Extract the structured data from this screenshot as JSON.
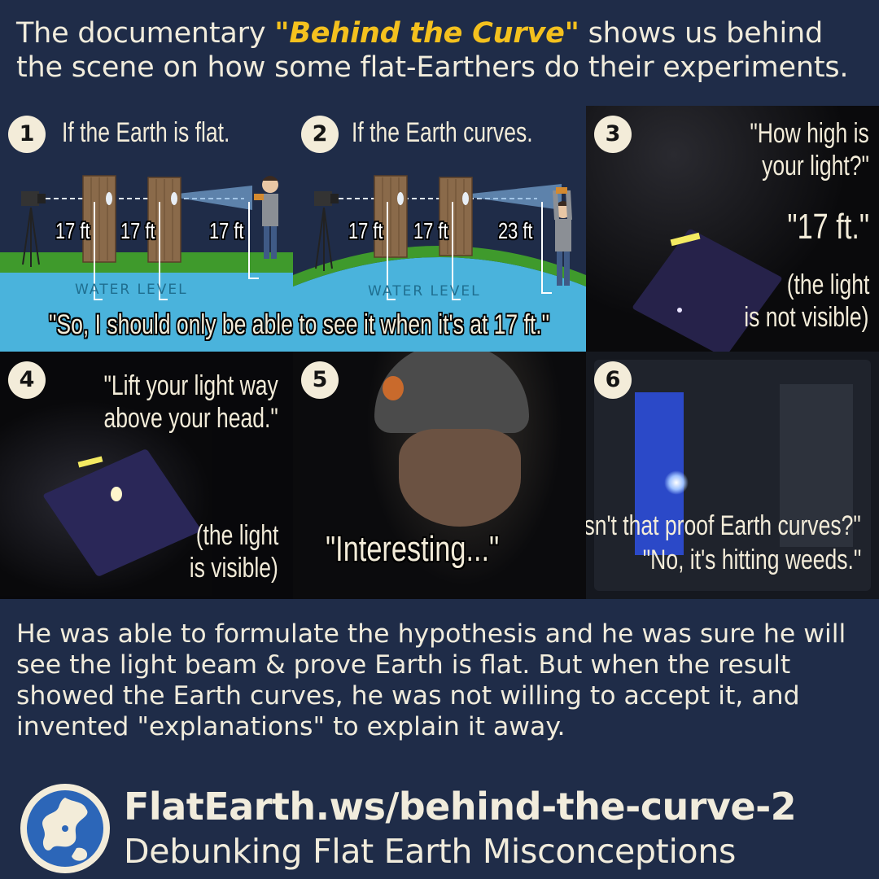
{
  "intro": {
    "prefix": "The documentary ",
    "title": "\"Behind the Curve\"",
    "suffix": " shows us behind the scene on how some flat-Earthers do their experiments."
  },
  "panels": {
    "p1": {
      "number": "1",
      "heading": "If the Earth is flat.",
      "heights": [
        "17 ft",
        "17 ft",
        "17 ft"
      ]
    },
    "p2": {
      "number": "2",
      "heading": "If the Earth curves.",
      "heights": [
        "17 ft",
        "17 ft",
        "23 ft"
      ]
    },
    "water_label": "WATER LEVEL",
    "shared_quote": "\"So, I should only be able to see it when it's at 17 ft.\"",
    "p3": {
      "number": "3",
      "question": [
        "\"How high is",
        "your light?\""
      ],
      "answer": "\"17 ft.\"",
      "note": [
        "(the light",
        "is not visible)"
      ]
    },
    "p4": {
      "number": "4",
      "quote": [
        "\"Lift your light way",
        "above your head.\""
      ],
      "note": [
        "(the light",
        "is visible)"
      ]
    },
    "p5": {
      "number": "5",
      "quote": "\"Interesting...\""
    },
    "p6": {
      "number": "6",
      "quote": [
        "\"Isn't that proof Earth curves?\"",
        "\"No, it's hitting weeds.\""
      ]
    }
  },
  "summary": "He was able to formulate the hypothesis and he was sure he will see the light beam & prove Earth is flat. But when the result showed the Earth curves, he was not willing to accept it, and invented \"explanations\" to explain it away.",
  "footer": {
    "url": "FlatEarth.ws/behind-the-curve-2",
    "tagline": "Debunking Flat Earth Misconceptions"
  },
  "colors": {
    "background": "#1f2c48",
    "highlight": "#f4c11e",
    "text": "#f1ecdc",
    "grass": "#3f9a2c",
    "water": "#4ab3dc"
  }
}
